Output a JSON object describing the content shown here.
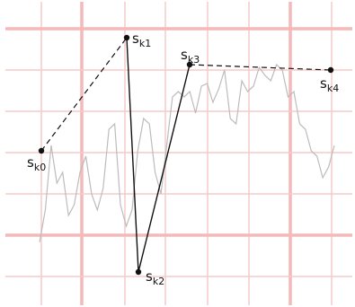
{
  "diagram": {
    "grid": {
      "x_lines": 8,
      "y_lines": 8
    },
    "signal": [
      0.16,
      0.28,
      0.52,
      0.38,
      0.42,
      0.26,
      0.3,
      0.42,
      0.48,
      0.34,
      0.28,
      0.36,
      0.58,
      0.6,
      0.3,
      0.22,
      0.28,
      0.5,
      0.62,
      0.6,
      0.42,
      0.34,
      0.52,
      0.7,
      0.72,
      0.7,
      0.72,
      0.64,
      0.74,
      0.75,
      0.68,
      0.73,
      0.8,
      0.62,
      0.6,
      0.76,
      0.72,
      0.74,
      0.81,
      0.78,
      0.76,
      0.82,
      0.8,
      0.7,
      0.72,
      0.6,
      0.58,
      0.5,
      0.48,
      0.4,
      0.44,
      0.52
    ],
    "points": [
      {
        "label": "s",
        "sub": "k0",
        "y": 0.5
      },
      {
        "label": "s",
        "sub": "k1",
        "y": 0.92
      },
      {
        "label": "s",
        "sub": "k2",
        "y": 0.05
      },
      {
        "label": "s",
        "sub": "k3",
        "y": 0.82
      },
      {
        "label": "s",
        "sub": "k4",
        "y": 0.8
      }
    ],
    "segments": [
      {
        "from": 0,
        "to": 1,
        "style": "dashed"
      },
      {
        "from": 1,
        "to": 2,
        "style": "solid"
      },
      {
        "from": 2,
        "to": 3,
        "style": "solid"
      },
      {
        "from": 3,
        "to": 4,
        "style": "dashed"
      }
    ]
  }
}
